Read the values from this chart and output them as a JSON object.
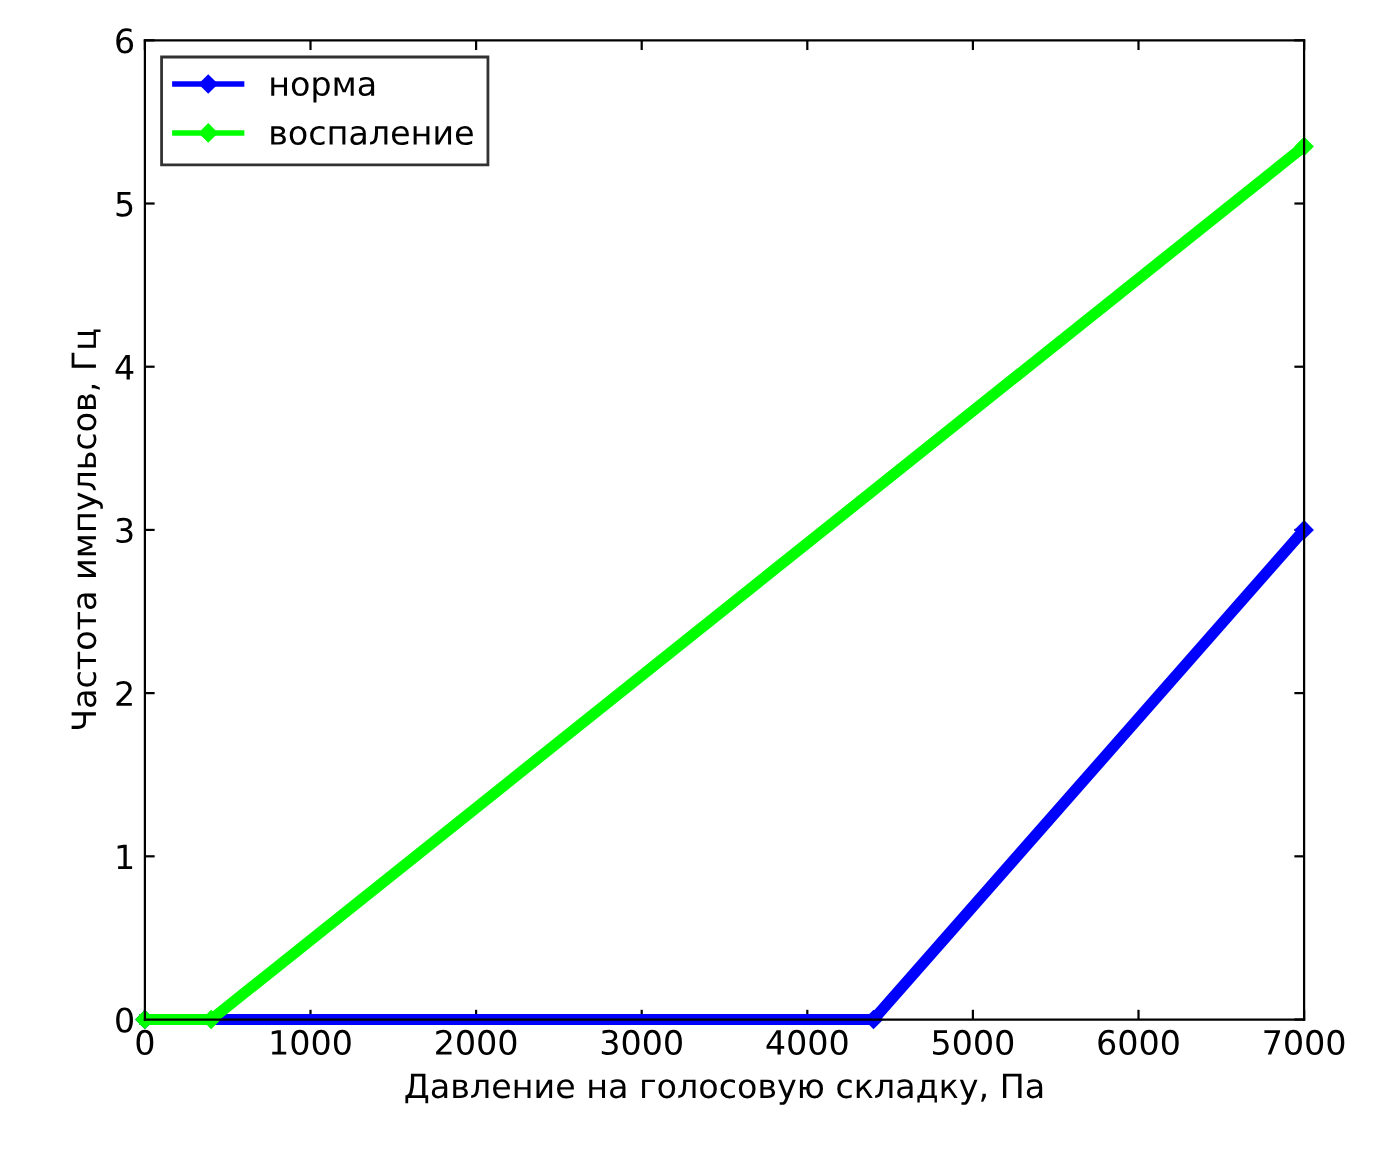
{
  "chart_data": {
    "type": "line",
    "xlabel": "Давление на голосовую складку, Па",
    "ylabel": "Частота импульсов, Гц",
    "series": [
      {
        "name": "норма",
        "color": "#0000ff",
        "x": [
          0,
          4400,
          7000
        ],
        "values": [
          0,
          0,
          3.0
        ]
      },
      {
        "name": "воспаление",
        "color": "#00ff00",
        "x": [
          0,
          400,
          7000
        ],
        "values": [
          0,
          0,
          5.35
        ]
      }
    ],
    "xlim": [
      0,
      7000
    ],
    "ylim": [
      0,
      6
    ],
    "xticks": [
      0,
      1000,
      2000,
      3000,
      4000,
      5000,
      6000,
      7000
    ],
    "yticks": [
      0,
      1,
      2,
      3,
      4,
      5,
      6
    ],
    "grid": false,
    "legend": "top left",
    "marker": "diamond",
    "line_style": "solid"
  }
}
